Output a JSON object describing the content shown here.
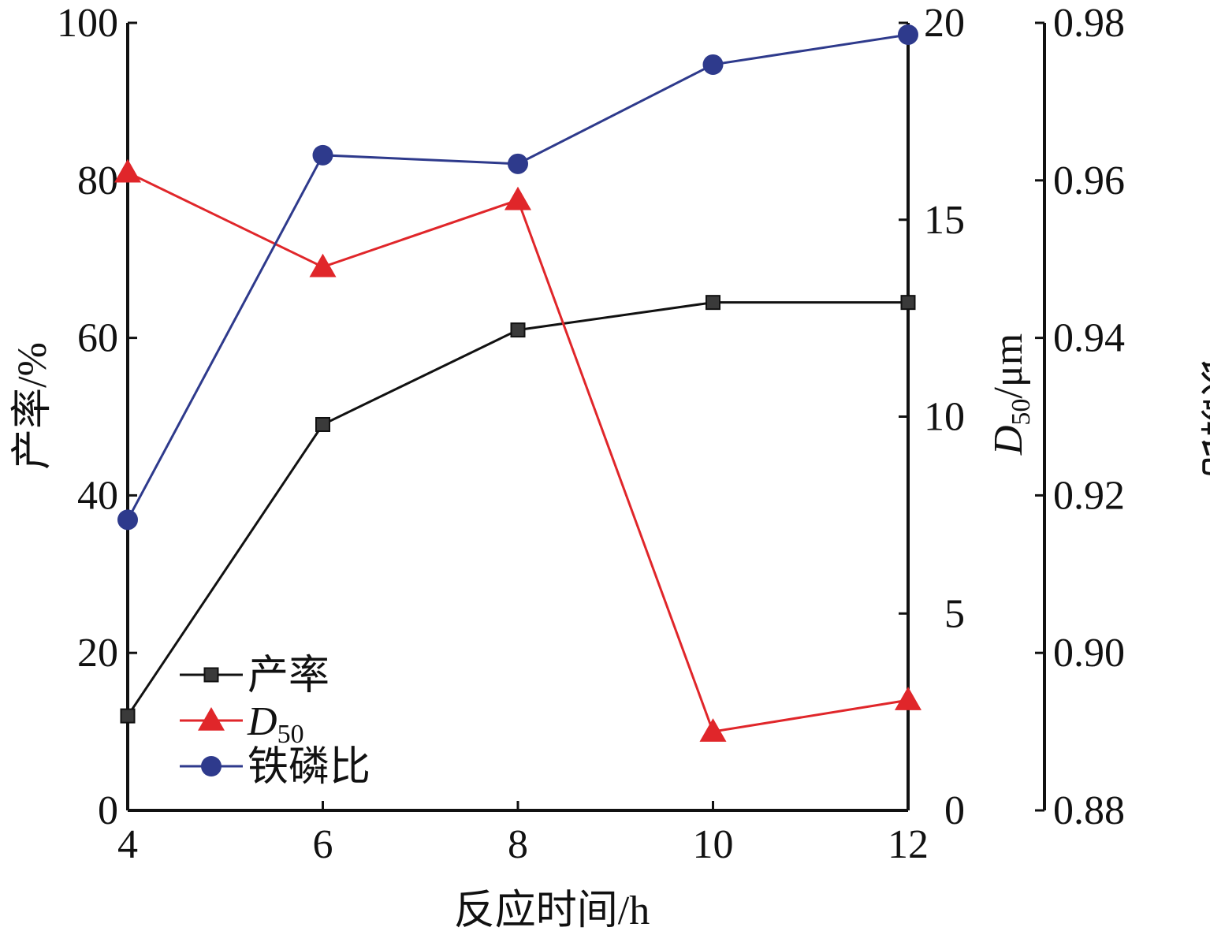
{
  "chart_data": {
    "type": "line",
    "x": [
      4,
      6,
      8,
      10,
      12
    ],
    "xlabel": "反应时间/h",
    "x_ticks": [
      "4",
      "6",
      "8",
      "10",
      "12"
    ],
    "xlim": [
      4,
      12
    ],
    "axes": {
      "left": {
        "label": "产率/%",
        "ylim": [
          0,
          100
        ],
        "ticks": [
          "0",
          "20",
          "40",
          "60",
          "80",
          "100"
        ]
      },
      "right1": {
        "label_main": "D",
        "label_sub": "50",
        "label_unit": "/μm",
        "ylim": [
          0,
          20
        ],
        "ticks": [
          "0",
          "5",
          "10",
          "15",
          "20"
        ]
      },
      "right2": {
        "label": "铁磷比",
        "ylim": [
          0.88,
          0.98
        ],
        "ticks": [
          "0.88",
          "0.90",
          "0.92",
          "0.94",
          "0.96",
          "0.98"
        ]
      }
    },
    "series": [
      {
        "name": "产率",
        "axis": "left",
        "marker": "square",
        "color": "#111111",
        "values": [
          12,
          49,
          61,
          64.5,
          64.5
        ]
      },
      {
        "name": "D",
        "name_sub": "50",
        "axis": "right1",
        "marker": "triangle",
        "color": "#e0262a",
        "values": [
          16.2,
          13.8,
          15.5,
          2.0,
          2.8
        ]
      },
      {
        "name": "铁磷比",
        "axis": "right2",
        "marker": "circle",
        "color": "#2e3a8c",
        "values": [
          0.9169,
          0.9632,
          0.9621,
          0.9747,
          0.9785
        ]
      }
    ],
    "legend_position": "bottom-left",
    "grid": false
  }
}
